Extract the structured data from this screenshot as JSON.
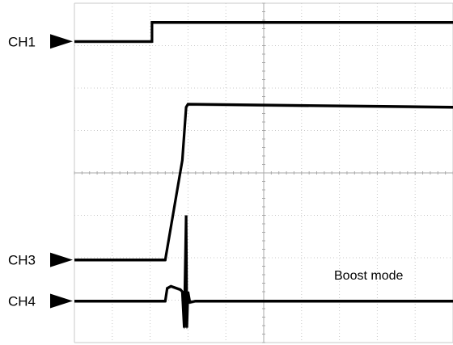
{
  "chart_data": {
    "type": "line",
    "title": "",
    "xlabel": "",
    "ylabel": "",
    "grid": true,
    "x_divisions": 10,
    "y_divisions": 8,
    "annotation": "Boost mode",
    "channels": [
      {
        "label": "CH1",
        "marker_level": 7.1
      },
      {
        "label": "CH3",
        "marker_level": 1.95
      },
      {
        "label": "CH4",
        "marker_level": 0.98
      }
    ],
    "series": [
      {
        "x": [
          0,
          2.05,
          2.05,
          10
        ],
        "y": [
          7.1,
          7.1,
          7.55,
          7.55
        ]
      },
      {
        "x": [
          0,
          2.4,
          2.85,
          2.95,
          3.0,
          10
        ],
        "y": [
          1.95,
          1.95,
          4.3,
          5.55,
          5.62,
          5.55
        ]
      },
      {
        "x": [
          0,
          2.4,
          2.45,
          2.55,
          2.8,
          2.85,
          2.9,
          2.95,
          2.97,
          3.0,
          3.05,
          3.2,
          10
        ],
        "y": [
          0.98,
          0.98,
          1.28,
          1.33,
          1.25,
          1.2,
          0.35,
          3.0,
          0.35,
          1.2,
          0.95,
          0.98,
          0.98
        ]
      }
    ]
  }
}
